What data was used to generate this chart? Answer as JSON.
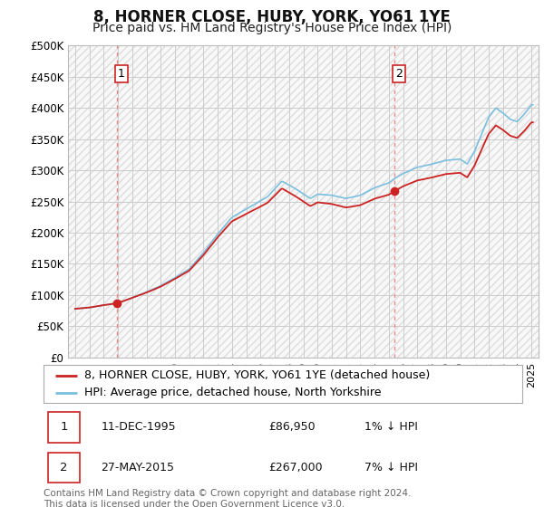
{
  "title": "8, HORNER CLOSE, HUBY, YORK, YO61 1YE",
  "subtitle": "Price paid vs. HM Land Registry's House Price Index (HPI)",
  "ytick_values": [
    0,
    50000,
    100000,
    150000,
    200000,
    250000,
    300000,
    350000,
    400000,
    450000,
    500000
  ],
  "ylim": [
    0,
    500000
  ],
  "xlim_start": 1992.5,
  "xlim_end": 2025.5,
  "hpi_color": "#7abfdf",
  "price_color": "#cc2222",
  "marker_color": "#cc2222",
  "vline_color": "#e88888",
  "grid_color": "#cccccc",
  "background_color": "#ffffff",
  "plot_bg_color": "#f8f8f8",
  "hatch_color": "#dddddd",
  "legend_items": [
    "8, HORNER CLOSE, HUBY, YORK, YO61 1YE (detached house)",
    "HPI: Average price, detached house, North Yorkshire"
  ],
  "sale1_year": 1995.95,
  "sale1_price": 86950,
  "sale1_label": "1",
  "sale1_date": "11-DEC-1995",
  "sale1_text": "£86,950",
  "sale1_hpi": "1% ↓ HPI",
  "sale2_year": 2015.4,
  "sale2_price": 267000,
  "sale2_label": "2",
  "sale2_date": "27-MAY-2015",
  "sale2_text": "£267,000",
  "sale2_hpi": "7% ↓ HPI",
  "footer": "Contains HM Land Registry data © Crown copyright and database right 2024.\nThis data is licensed under the Open Government Licence v3.0.",
  "title_fontsize": 12,
  "subtitle_fontsize": 10,
  "legend_fontsize": 9,
  "table_fontsize": 9,
  "footer_fontsize": 7.5,
  "tick_fontsize": 8.5
}
